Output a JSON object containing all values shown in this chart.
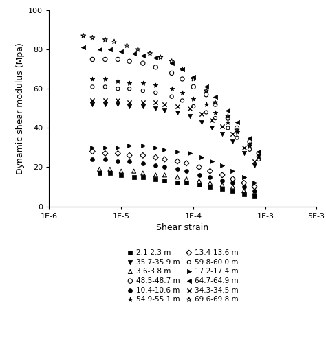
{
  "xlabel": "Shear strain",
  "ylabel": "Dynamic shear modulus (Mpa)",
  "xlim": [
    1e-06,
    0.005
  ],
  "ylim": [
    0,
    100
  ],
  "yticks": [
    0,
    20,
    40,
    60,
    80,
    100
  ],
  "xticks": [
    1e-06,
    1e-05,
    0.0001,
    0.001,
    0.005
  ],
  "xticklabels": [
    "1E-6",
    "1E-5",
    "1E-4",
    "1E-3",
    "5E-3"
  ],
  "series": [
    {
      "label": "2.1-2.3 m",
      "marker": "s",
      "filled": true,
      "msize": 16,
      "x": [
        5e-06,
        7e-06,
        1e-05,
        1.5e-05,
        2e-05,
        3e-05,
        4e-05,
        6e-05,
        8e-05,
        0.00012,
        0.00017,
        0.00025,
        0.00035,
        0.0005,
        0.0007
      ],
      "y": [
        17,
        17,
        16,
        15,
        15,
        14,
        13,
        12,
        12,
        11,
        10,
        9,
        8,
        6,
        5
      ]
    },
    {
      "label": "3.6-3.8 m",
      "marker": "^",
      "filled": false,
      "msize": 18,
      "x": [
        5e-06,
        7e-06,
        1e-05,
        1.5e-05,
        2e-05,
        3e-05,
        4e-05,
        6e-05,
        8e-05,
        0.00012,
        0.00017,
        0.00025,
        0.00035,
        0.0005,
        0.0007
      ],
      "y": [
        19,
        19,
        18,
        18,
        17,
        16,
        16,
        15,
        14,
        13,
        12,
        11,
        10,
        8,
        7
      ]
    },
    {
      "label": "10.4-10.6 m",
      "marker": "o",
      "filled": true,
      "msize": 18,
      "x": [
        4e-06,
        6e-06,
        9e-06,
        1.3e-05,
        2e-05,
        3e-05,
        4e-05,
        6e-05,
        8e-05,
        0.00012,
        0.00017,
        0.00025,
        0.00035,
        0.0005,
        0.0007
      ],
      "y": [
        24,
        24,
        23,
        23,
        22,
        21,
        20,
        19,
        18,
        16,
        15,
        13,
        12,
        10,
        8
      ]
    },
    {
      "label": "13.4-13.6 m",
      "marker": "D",
      "filled": false,
      "msize": 16,
      "x": [
        4e-06,
        6e-06,
        9e-06,
        1.3e-05,
        2e-05,
        3e-05,
        4e-05,
        6e-05,
        8e-05,
        0.00012,
        0.00017,
        0.00025,
        0.00035,
        0.0005,
        0.0007
      ],
      "y": [
        28,
        27,
        27,
        26,
        26,
        25,
        24,
        23,
        22,
        20,
        18,
        16,
        14,
        12,
        10
      ]
    },
    {
      "label": "17.2-17.4 m",
      "marker": ">",
      "filled": true,
      "msize": 20,
      "x": [
        4e-06,
        6e-06,
        9e-06,
        1.3e-05,
        2e-05,
        3e-05,
        4e-05,
        6e-05,
        9e-05,
        0.00013,
        0.00018,
        0.00025,
        0.00035,
        0.0005,
        0.0007
      ],
      "y": [
        30,
        30,
        30,
        31,
        31,
        30,
        29,
        28,
        27,
        25,
        23,
        21,
        18,
        15,
        12
      ]
    },
    {
      "label": "34.3-34.5 m",
      "marker": "x",
      "filled": false,
      "msize": 20,
      "x": [
        4e-06,
        6e-06,
        9e-06,
        1.3e-05,
        2e-05,
        3e-05,
        4e-05,
        6e-05,
        9e-05,
        0.00013,
        0.00018,
        0.00025,
        0.00035,
        0.0005,
        0.0007
      ],
      "y": [
        54,
        54,
        54,
        53,
        53,
        53,
        52,
        51,
        50,
        47,
        44,
        41,
        37,
        30,
        23
      ]
    },
    {
      "label": "35.7-35.9 m",
      "marker": "v",
      "filled": true,
      "msize": 20,
      "x": [
        4e-06,
        6e-06,
        9e-06,
        1.3e-05,
        2e-05,
        3e-05,
        4e-05,
        6e-05,
        9e-05,
        0.00013,
        0.00018,
        0.00025,
        0.00035,
        0.0005,
        0.0007
      ],
      "y": [
        52,
        52,
        52,
        51,
        51,
        50,
        49,
        48,
        46,
        43,
        40,
        37,
        33,
        27,
        21
      ]
    },
    {
      "label": "48.5-48.7 m",
      "marker": "o",
      "filled": false,
      "msize": 20,
      "x": [
        4e-06,
        6e-06,
        9e-06,
        1.3e-05,
        2e-05,
        3e-05,
        5e-05,
        7e-05,
        0.0001,
        0.00015,
        0.0002,
        0.0003,
        0.0004,
        0.0006,
        0.0008
      ],
      "y": [
        75,
        75,
        75,
        74,
        73,
        71,
        68,
        65,
        61,
        57,
        52,
        45,
        40,
        33,
        27
      ]
    },
    {
      "label": "54.9-55.1 m",
      "marker": "*",
      "filled": true,
      "msize": 25,
      "x": [
        4e-06,
        6e-06,
        9e-06,
        1.3e-05,
        2e-05,
        3e-05,
        5e-05,
        7e-05,
        0.0001,
        0.00015,
        0.0002,
        0.0003,
        0.0004,
        0.0006,
        0.0008
      ],
      "y": [
        65,
        65,
        64,
        63,
        63,
        62,
        60,
        58,
        55,
        52,
        48,
        43,
        38,
        32,
        26
      ]
    },
    {
      "label": "59.8-60.0 m",
      "marker": "o",
      "filled": false,
      "msize": 14,
      "x": [
        4e-06,
        6e-06,
        9e-06,
        1.3e-05,
        2e-05,
        3e-05,
        5e-05,
        7e-05,
        0.0001,
        0.00015,
        0.0002,
        0.0003,
        0.0004,
        0.0006,
        0.0008
      ],
      "y": [
        61,
        61,
        60,
        60,
        59,
        58,
        56,
        54,
        51,
        48,
        45,
        40,
        35,
        29,
        24
      ]
    },
    {
      "label": "64.7-64.9 m",
      "marker": "<",
      "filled": true,
      "msize": 20,
      "x": [
        3e-06,
        5e-06,
        7e-06,
        1e-05,
        1.5e-05,
        2e-05,
        3e-05,
        5e-05,
        7e-05,
        0.0001,
        0.00015,
        0.0002,
        0.0003,
        0.0004,
        0.0006,
        0.0008
      ],
      "y": [
        81,
        80,
        80,
        79,
        78,
        77,
        76,
        73,
        70,
        66,
        61,
        56,
        49,
        43,
        35,
        28
      ]
    },
    {
      "label": "69.6-69.8 m",
      "marker": "*",
      "filled": false,
      "msize": 25,
      "x": [
        3e-06,
        4e-06,
        6e-06,
        8e-06,
        1.2e-05,
        1.7e-05,
        2.5e-05,
        3.5e-05,
        5e-05,
        7e-05,
        0.0001,
        0.00015,
        0.0002,
        0.0003,
        0.0004,
        0.0006,
        0.0008
      ],
      "y": [
        87,
        86,
        85,
        84,
        82,
        80,
        78,
        76,
        74,
        70,
        65,
        59,
        53,
        46,
        39,
        31,
        25
      ]
    }
  ],
  "background_color": "#ffffff",
  "figsize": [
    4.74,
    5.01
  ],
  "dpi": 100
}
